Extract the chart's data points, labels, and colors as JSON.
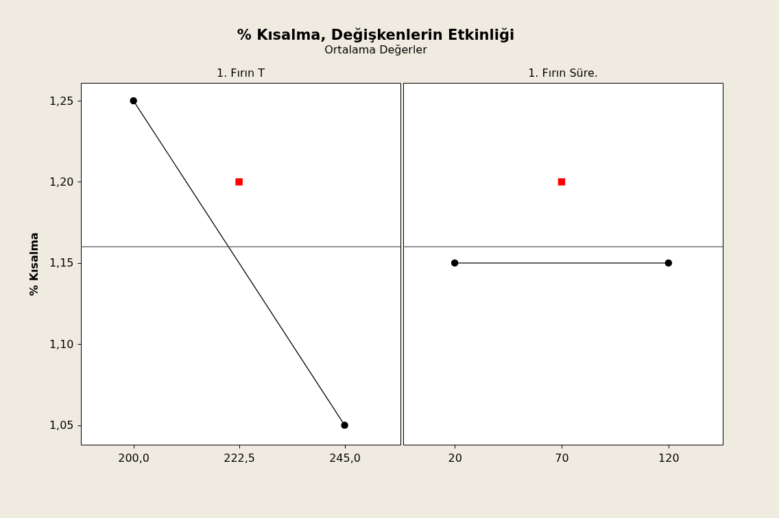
{
  "chart_data": [
    {
      "type": "line",
      "title": "% Kısalma, Değişkenlerin Etkinliği",
      "subtitle": "Ortalama Değerler",
      "xlabel": "1. Fırın T",
      "ylabel": "% Kısalma",
      "xlim": [
        188.8,
        256.9
      ],
      "xticks": [
        {
          "value": 200,
          "label": "200,0"
        },
        {
          "value": 222.5,
          "label": "222,5"
        },
        {
          "value": 245,
          "label": "245,0"
        }
      ],
      "ylim": [
        1.038,
        1.261
      ],
      "yticks": [
        {
          "value": 1.05,
          "label": "1,05"
        },
        {
          "value": 1.1,
          "label": "1,10"
        },
        {
          "value": 1.15,
          "label": "1,15"
        },
        {
          "value": 1.2,
          "label": "1,20"
        },
        {
          "value": 1.25,
          "label": "1,25"
        }
      ],
      "series": [
        {
          "x": [
            200,
            245
          ],
          "values": [
            1.25,
            1.05
          ],
          "color": "#000000",
          "marker": "circle"
        },
        {
          "type": "scatter",
          "x": [
            222.5
          ],
          "values": [
            1.2
          ],
          "color": "#ff0000",
          "marker": "square"
        }
      ],
      "ref_lines": [
        {
          "axis": "y",
          "value": 1.16,
          "color": "#555555"
        }
      ],
      "grid": false
    },
    {
      "type": "line",
      "xlabel": "1. Fırın Süre.",
      "xlim": [
        -4.1,
        145.4
      ],
      "xticks": [
        20,
        70,
        120
      ],
      "ylim": [
        1.038,
        1.261
      ],
      "tick_labels": "x",
      "series": [
        {
          "x": [
            20,
            120
          ],
          "values": [
            1.15,
            1.15
          ],
          "color": "#000000",
          "marker": "circle"
        },
        {
          "type": "scatter",
          "x": [
            70
          ],
          "values": [
            1.2
          ],
          "color": "#ff0000",
          "marker": "square"
        }
      ],
      "ref_lines": [
        {
          "axis": "y",
          "value": 1.16,
          "color": "#555555"
        }
      ],
      "grid": false
    }
  ]
}
